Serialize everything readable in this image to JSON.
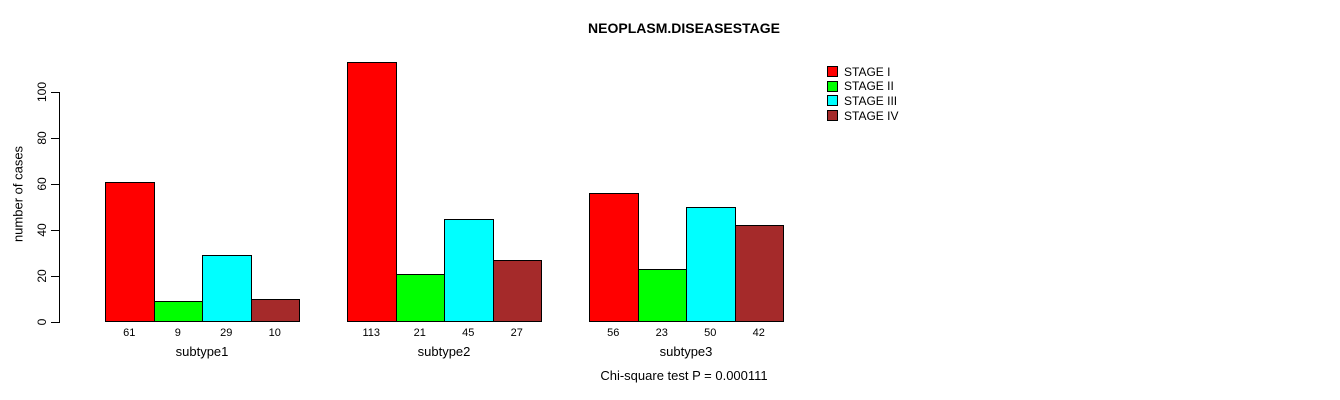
{
  "chart_data": {
    "type": "bar",
    "title": "NEOPLASM.DISEASESTAGE",
    "ylabel": "number of cases",
    "xlabel": "",
    "categories": [
      "subtype1",
      "subtype2",
      "subtype3"
    ],
    "series": [
      {
        "name": "STAGE I",
        "color": "#FF0000",
        "values": [
          61,
          113,
          56
        ]
      },
      {
        "name": "STAGE II",
        "color": "#00FF00",
        "values": [
          9,
          21,
          23
        ]
      },
      {
        "name": "STAGE III",
        "color": "#00FFFF",
        "values": [
          29,
          45,
          50
        ]
      },
      {
        "name": "STAGE IV",
        "color": "#A52A2A",
        "values": [
          10,
          27,
          42
        ]
      }
    ],
    "yticks": [
      0,
      20,
      40,
      60,
      80,
      100
    ],
    "ylim": [
      0,
      113
    ],
    "grid": false,
    "bar_value_labels_shown": true,
    "legend_position": "top-right",
    "annotation": "Chi-square test P = 0.000111",
    "colors": {
      "background": "#FFFFFF",
      "axis": "#000000",
      "bar_border": "#000000",
      "text": "#000000"
    }
  }
}
